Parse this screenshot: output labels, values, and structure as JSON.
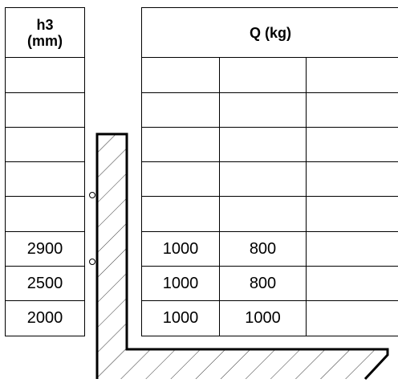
{
  "h3_table": {
    "header_line1": "h3",
    "header_line2": "(mm)",
    "rows": [
      "",
      "",
      "",
      "",
      "",
      "2900",
      "2500",
      "2000"
    ]
  },
  "q_table": {
    "header": "Q (kg)",
    "rows": [
      [
        "",
        "",
        ""
      ],
      [
        "",
        "",
        ""
      ],
      [
        "",
        "",
        ""
      ],
      [
        "",
        "",
        ""
      ],
      [
        "",
        "",
        ""
      ],
      [
        "1000",
        "800",
        ""
      ],
      [
        "1000",
        "800",
        ""
      ],
      [
        "1000",
        "1000",
        ""
      ]
    ]
  }
}
